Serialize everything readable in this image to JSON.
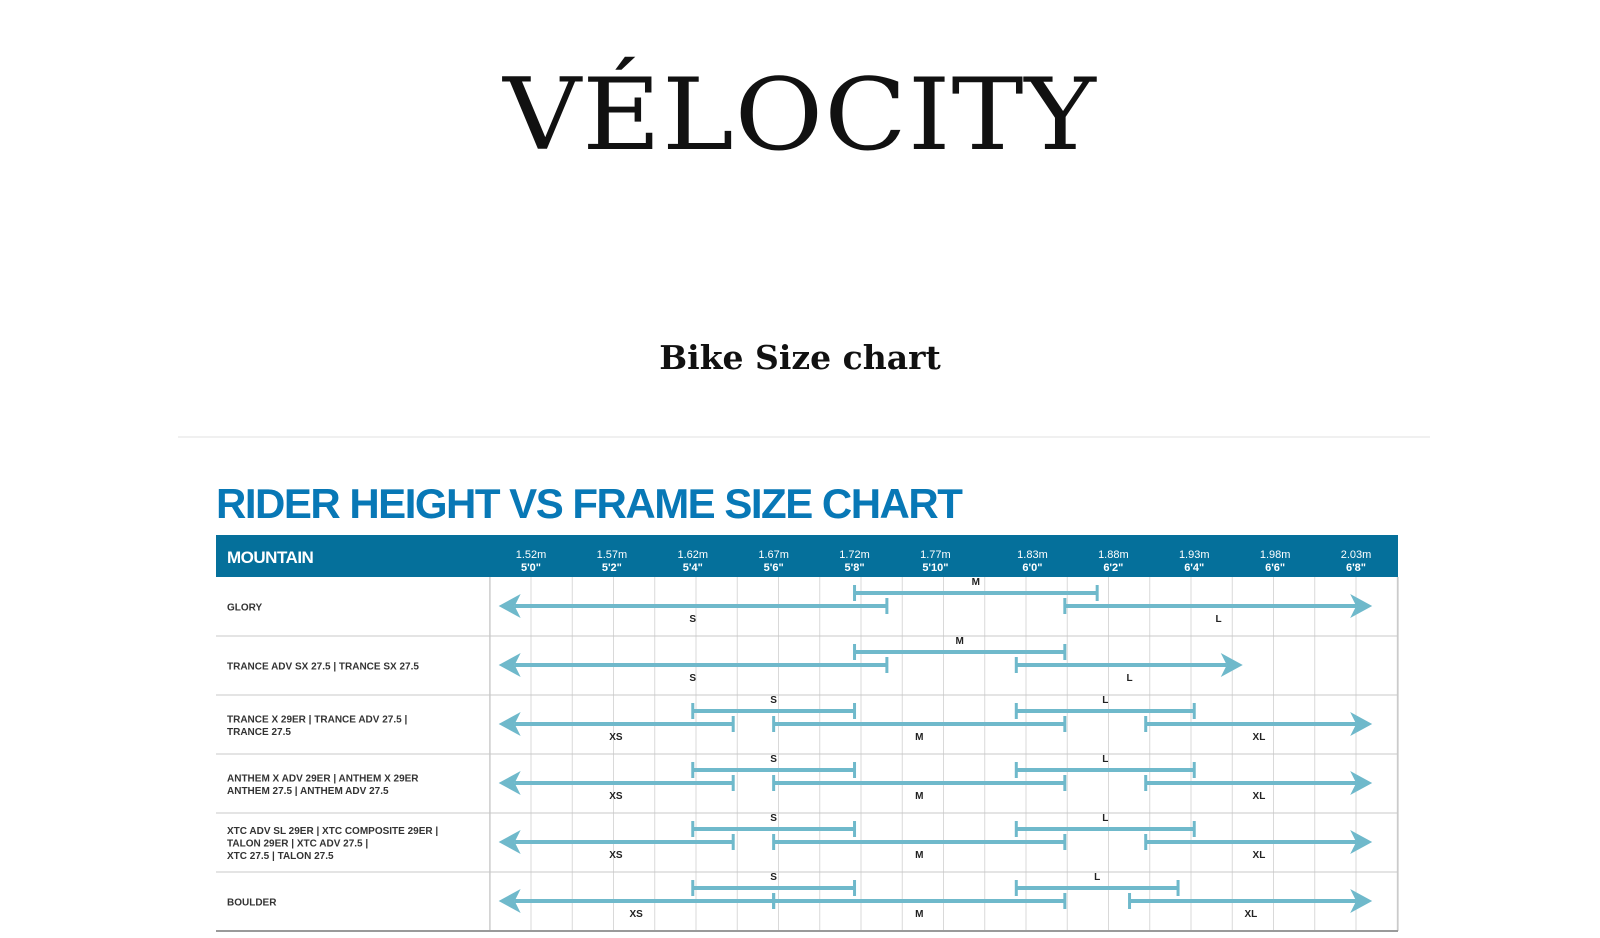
{
  "brand": {
    "logo_text": "VÉLOCITY"
  },
  "page": {
    "title": "Bike Size chart"
  },
  "colors": {
    "header_bg": "#05709b",
    "title_blue": "#0878b6",
    "arrow": "#6fb9cb",
    "grid": "#d9d9d9"
  },
  "chart_data": {
    "type": "range",
    "title": "RIDER HEIGHT VS FRAME SIZE CHART",
    "category_header": "MOUNTAIN",
    "columns": [
      {
        "metric": "1.52m",
        "imperial": "5'0\"",
        "value": 1.52
      },
      {
        "metric": "1.57m",
        "imperial": "5'2\"",
        "value": 1.57
      },
      {
        "metric": "1.62m",
        "imperial": "5'4\"",
        "value": 1.62
      },
      {
        "metric": "1.67m",
        "imperial": "5'6\"",
        "value": 1.67
      },
      {
        "metric": "1.72m",
        "imperial": "5'8\"",
        "value": 1.72
      },
      {
        "metric": "1.77m",
        "imperial": "5'10\"",
        "value": 1.77
      },
      {
        "metric": "1.83m",
        "imperial": "6'0\"",
        "value": 1.83
      },
      {
        "metric": "1.88m",
        "imperial": "6'2\"",
        "value": 1.88
      },
      {
        "metric": "1.93m",
        "imperial": "6'4\"",
        "value": 1.93
      },
      {
        "metric": "1.98m",
        "imperial": "6'6\"",
        "value": 1.98
      },
      {
        "metric": "2.03m",
        "imperial": "6'8\"",
        "value": 2.03
      }
    ],
    "rows": [
      {
        "lines": [
          "GLORY"
        ],
        "ranges": [
          {
            "size": "S",
            "min": 1.5,
            "max": 1.74,
            "level": "low",
            "arrow_left": true
          },
          {
            "size": "M",
            "min": 1.72,
            "max": 1.87,
            "level": "high"
          },
          {
            "size": "L",
            "min": 1.85,
            "max": 2.04,
            "level": "low",
            "arrow_right": true
          }
        ]
      },
      {
        "lines": [
          "TRANCE ADV SX 27.5 | TRANCE SX 27.5"
        ],
        "ranges": [
          {
            "size": "S",
            "min": 1.5,
            "max": 1.74,
            "level": "low",
            "arrow_left": true
          },
          {
            "size": "M",
            "min": 1.72,
            "max": 1.85,
            "level": "high"
          },
          {
            "size": "L",
            "min": 1.82,
            "max": 1.96,
            "level": "low",
            "arrow_right": true
          }
        ]
      },
      {
        "lines": [
          "TRANCE X 29ER | TRANCE ADV 27.5 |",
          "TRANCE 27.5"
        ],
        "ranges": [
          {
            "size": "XS",
            "min": 1.5,
            "max": 1.645,
            "level": "low",
            "arrow_left": true
          },
          {
            "size": "S",
            "min": 1.62,
            "max": 1.72,
            "level": "high"
          },
          {
            "size": "M",
            "min": 1.67,
            "max": 1.85,
            "level": "low"
          },
          {
            "size": "L",
            "min": 1.82,
            "max": 1.93,
            "level": "high"
          },
          {
            "size": "XL",
            "min": 1.9,
            "max": 2.04,
            "level": "low",
            "arrow_right": true
          }
        ]
      },
      {
        "lines": [
          "ANTHEM X ADV 29ER | ANTHEM X 29ER",
          "ANTHEM 27.5 | ANTHEM ADV 27.5"
        ],
        "ranges": [
          {
            "size": "XS",
            "min": 1.5,
            "max": 1.645,
            "level": "low",
            "arrow_left": true
          },
          {
            "size": "S",
            "min": 1.62,
            "max": 1.72,
            "level": "high"
          },
          {
            "size": "M",
            "min": 1.67,
            "max": 1.85,
            "level": "low"
          },
          {
            "size": "L",
            "min": 1.82,
            "max": 1.93,
            "level": "high"
          },
          {
            "size": "XL",
            "min": 1.9,
            "max": 2.04,
            "level": "low",
            "arrow_right": true
          }
        ]
      },
      {
        "lines": [
          "XTC ADV  SL 29ER | XTC COMPOSITE 29ER |",
          "TALON 29ER |  XTC ADV 27.5 |",
          "XTC 27.5 | TALON 27.5"
        ],
        "ranges": [
          {
            "size": "XS",
            "min": 1.5,
            "max": 1.645,
            "level": "low",
            "arrow_left": true
          },
          {
            "size": "S",
            "min": 1.62,
            "max": 1.72,
            "level": "high"
          },
          {
            "size": "M",
            "min": 1.67,
            "max": 1.85,
            "level": "low"
          },
          {
            "size": "L",
            "min": 1.82,
            "max": 1.93,
            "level": "high"
          },
          {
            "size": "XL",
            "min": 1.9,
            "max": 2.04,
            "level": "low",
            "arrow_right": true
          }
        ]
      },
      {
        "lines": [
          "BOULDER"
        ],
        "ranges": [
          {
            "size": "XS",
            "min": 1.5,
            "max": 1.67,
            "level": "low",
            "arrow_left": true
          },
          {
            "size": "S",
            "min": 1.62,
            "max": 1.72,
            "level": "high"
          },
          {
            "size": "M",
            "min": 1.67,
            "max": 1.85,
            "level": "low"
          },
          {
            "size": "L",
            "min": 1.82,
            "max": 1.92,
            "level": "high"
          },
          {
            "size": "XL",
            "min": 1.89,
            "max": 2.04,
            "level": "low",
            "arrow_right": true
          }
        ]
      }
    ]
  }
}
